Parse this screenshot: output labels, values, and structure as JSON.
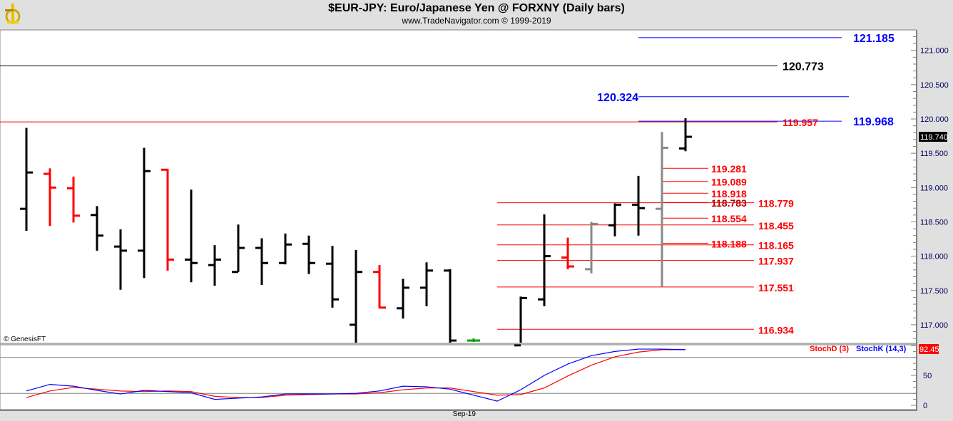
{
  "header": {
    "title": "$EUR-JPY:  Euro/Japanese Yen @ FORXNY  (Daily bars)",
    "subtitle": "www.TradeNavigator.com © 1999-2019",
    "logo": "sextant-logo"
  },
  "copyright": "© GenesisFT",
  "colors": {
    "up": "#000000",
    "down": "#ff0000",
    "neutral": "#808080",
    "blue": "#0000ff",
    "red": "#ff0000",
    "axis_bg": "#e0e0e0"
  },
  "chart_data": [
    {
      "type": "ohlc",
      "title": "$EUR-JPY:  Euro/Japanese Yen @ FORXNY  (Daily bars)",
      "ylim": [
        116.7,
        121.3
      ],
      "yticks": [
        "117.000",
        "117.500",
        "118.000",
        "118.500",
        "119.000",
        "119.500",
        "120.000",
        "120.500",
        "121.000"
      ],
      "ytick_values": [
        117,
        117.5,
        118,
        118.5,
        119,
        119.5,
        120,
        120.5,
        121
      ],
      "xlabel_ticks": [
        {
          "label": "Sep-19",
          "bar": 18.6
        }
      ],
      "last_price": "119.740",
      "bars": [
        {
          "o": 118.69,
          "h": 119.87,
          "l": 118.37,
          "c": 119.22,
          "color": "black"
        },
        {
          "o": 119.2,
          "h": 119.28,
          "l": 118.44,
          "c": 119.0,
          "color": "red"
        },
        {
          "o": 118.99,
          "h": 119.16,
          "l": 118.49,
          "c": 118.59,
          "color": "red"
        },
        {
          "o": 118.6,
          "h": 118.73,
          "l": 118.08,
          "c": 118.3,
          "color": "black"
        },
        {
          "o": 118.14,
          "h": 118.39,
          "l": 117.51,
          "c": 118.08,
          "color": "black"
        },
        {
          "o": 118.08,
          "h": 119.58,
          "l": 117.68,
          "c": 119.24,
          "color": "black"
        },
        {
          "o": 119.26,
          "h": 119.27,
          "l": 117.79,
          "c": 117.95,
          "color": "red"
        },
        {
          "o": 117.95,
          "h": 118.97,
          "l": 117.62,
          "c": 117.9,
          "color": "black"
        },
        {
          "o": 117.87,
          "h": 118.16,
          "l": 117.57,
          "c": 117.95,
          "color": "black"
        },
        {
          "o": 117.77,
          "h": 118.46,
          "l": 117.77,
          "c": 118.12,
          "color": "black"
        },
        {
          "o": 118.12,
          "h": 118.26,
          "l": 117.58,
          "c": 117.9,
          "color": "black"
        },
        {
          "o": 117.9,
          "h": 118.33,
          "l": 117.88,
          "c": 118.17,
          "color": "black"
        },
        {
          "o": 118.18,
          "h": 118.3,
          "l": 117.74,
          "c": 117.9,
          "color": "black"
        },
        {
          "o": 117.89,
          "h": 118.15,
          "l": 117.25,
          "c": 117.37,
          "color": "black"
        },
        {
          "o": 117.0,
          "h": 118.09,
          "l": 116.6,
          "c": 117.77,
          "color": "black"
        },
        {
          "o": 117.77,
          "h": 117.87,
          "l": 117.24,
          "c": 117.25,
          "color": "red"
        },
        {
          "o": 117.24,
          "h": 117.67,
          "l": 117.09,
          "c": 117.54,
          "color": "black"
        },
        {
          "o": 117.54,
          "h": 117.91,
          "l": 117.27,
          "c": 117.79,
          "color": "black"
        },
        {
          "o": 117.79,
          "h": 117.81,
          "l": 116.6,
          "c": 116.77,
          "color": "black"
        },
        {
          "o": 116.77,
          "h": 116.8,
          "l": 116.75,
          "c": 116.77,
          "color": "green"
        },
        null,
        {
          "o": 116.7,
          "h": 117.41,
          "l": 116.6,
          "c": 117.39,
          "color": "black"
        },
        {
          "o": 117.37,
          "h": 118.61,
          "l": 117.27,
          "c": 118.0,
          "color": "black"
        },
        {
          "o": 117.98,
          "h": 118.27,
          "l": 117.81,
          "c": 117.85,
          "color": "red"
        },
        {
          "o": 117.81,
          "h": 118.5,
          "l": 117.75,
          "c": 118.47,
          "color": "gray"
        },
        {
          "o": 118.45,
          "h": 118.77,
          "l": 118.29,
          "c": 118.75,
          "color": "black"
        },
        {
          "o": 118.75,
          "h": 119.17,
          "l": 118.3,
          "c": 118.7,
          "color": "black"
        },
        {
          "o": 118.69,
          "h": 119.81,
          "l": 117.55,
          "c": 119.58,
          "color": "gray"
        },
        {
          "o": 119.57,
          "h": 120.01,
          "l": 119.53,
          "c": 119.74,
          "color": "black"
        }
      ],
      "levels": [
        {
          "value": 121.185,
          "label": "121.185",
          "color": "#0000ff",
          "group": "far-right"
        },
        {
          "value": 120.773,
          "label": "120.773",
          "color": "#000000",
          "group": "full"
        },
        {
          "value": 120.324,
          "label": "120.324",
          "color": "#0000ff",
          "group": "left-label"
        },
        {
          "value": 119.968,
          "label": "119.968",
          "color": "#0000ff",
          "group": "far-right"
        },
        {
          "value": 119.957,
          "label": "119.957",
          "color": "#ff0000",
          "group": "full"
        },
        {
          "value": 119.281,
          "label": "119.281",
          "color": "#ff0000",
          "group": "short"
        },
        {
          "value": 119.089,
          "label": "119.089",
          "color": "#ff0000",
          "group": "short"
        },
        {
          "value": 118.918,
          "label": "118.918",
          "color": "#ff0000",
          "group": "short"
        },
        {
          "value": 118.783,
          "label": "118.783",
          "color": "#aa0000",
          "group": "short"
        },
        {
          "value": 118.554,
          "label": "118.554",
          "color": "#ff0000",
          "group": "short"
        },
        {
          "value": 118.188,
          "label": "118.188",
          "color": "#ff0000",
          "group": "short"
        },
        {
          "value": 118.779,
          "label": "118.779",
          "color": "#ff0000",
          "group": "mid"
        },
        {
          "value": 118.455,
          "label": "118.455",
          "color": "#ff0000",
          "group": "mid"
        },
        {
          "value": 118.165,
          "label": "118.165",
          "color": "#ff0000",
          "group": "mid"
        },
        {
          "value": 117.937,
          "label": "117.937",
          "color": "#ff0000",
          "group": "mid"
        },
        {
          "value": 117.551,
          "label": "117.551",
          "color": "#ff0000",
          "group": "mid"
        },
        {
          "value": 116.934,
          "label": "116.934",
          "color": "#ff0000",
          "group": "mid"
        }
      ]
    },
    {
      "type": "line",
      "ylim": [
        0,
        100
      ],
      "yticks": [
        "0",
        "50"
      ],
      "ytick_values": [
        0,
        50
      ],
      "reference_lines": [
        20,
        80
      ],
      "last_value": "92.45",
      "series": [
        {
          "name": "StochD (3)",
          "color": "#ff0000",
          "values": [
            13,
            24,
            30,
            27,
            24,
            23,
            24,
            23,
            15,
            13,
            13,
            17,
            18,
            19,
            19,
            21,
            26,
            29,
            29,
            23,
            17,
            18,
            29,
            49,
            67,
            81,
            89,
            93,
            93
          ]
        },
        {
          "name": "StochK (14,3)",
          "color": "#0000ff",
          "values": [
            24,
            35,
            32,
            25,
            19,
            25,
            23,
            21,
            10,
            12,
            14,
            19,
            19,
            19,
            20,
            24,
            32,
            31,
            27,
            17,
            7,
            26,
            50,
            69,
            83,
            90,
            94,
            94,
            93
          ]
        }
      ]
    }
  ]
}
